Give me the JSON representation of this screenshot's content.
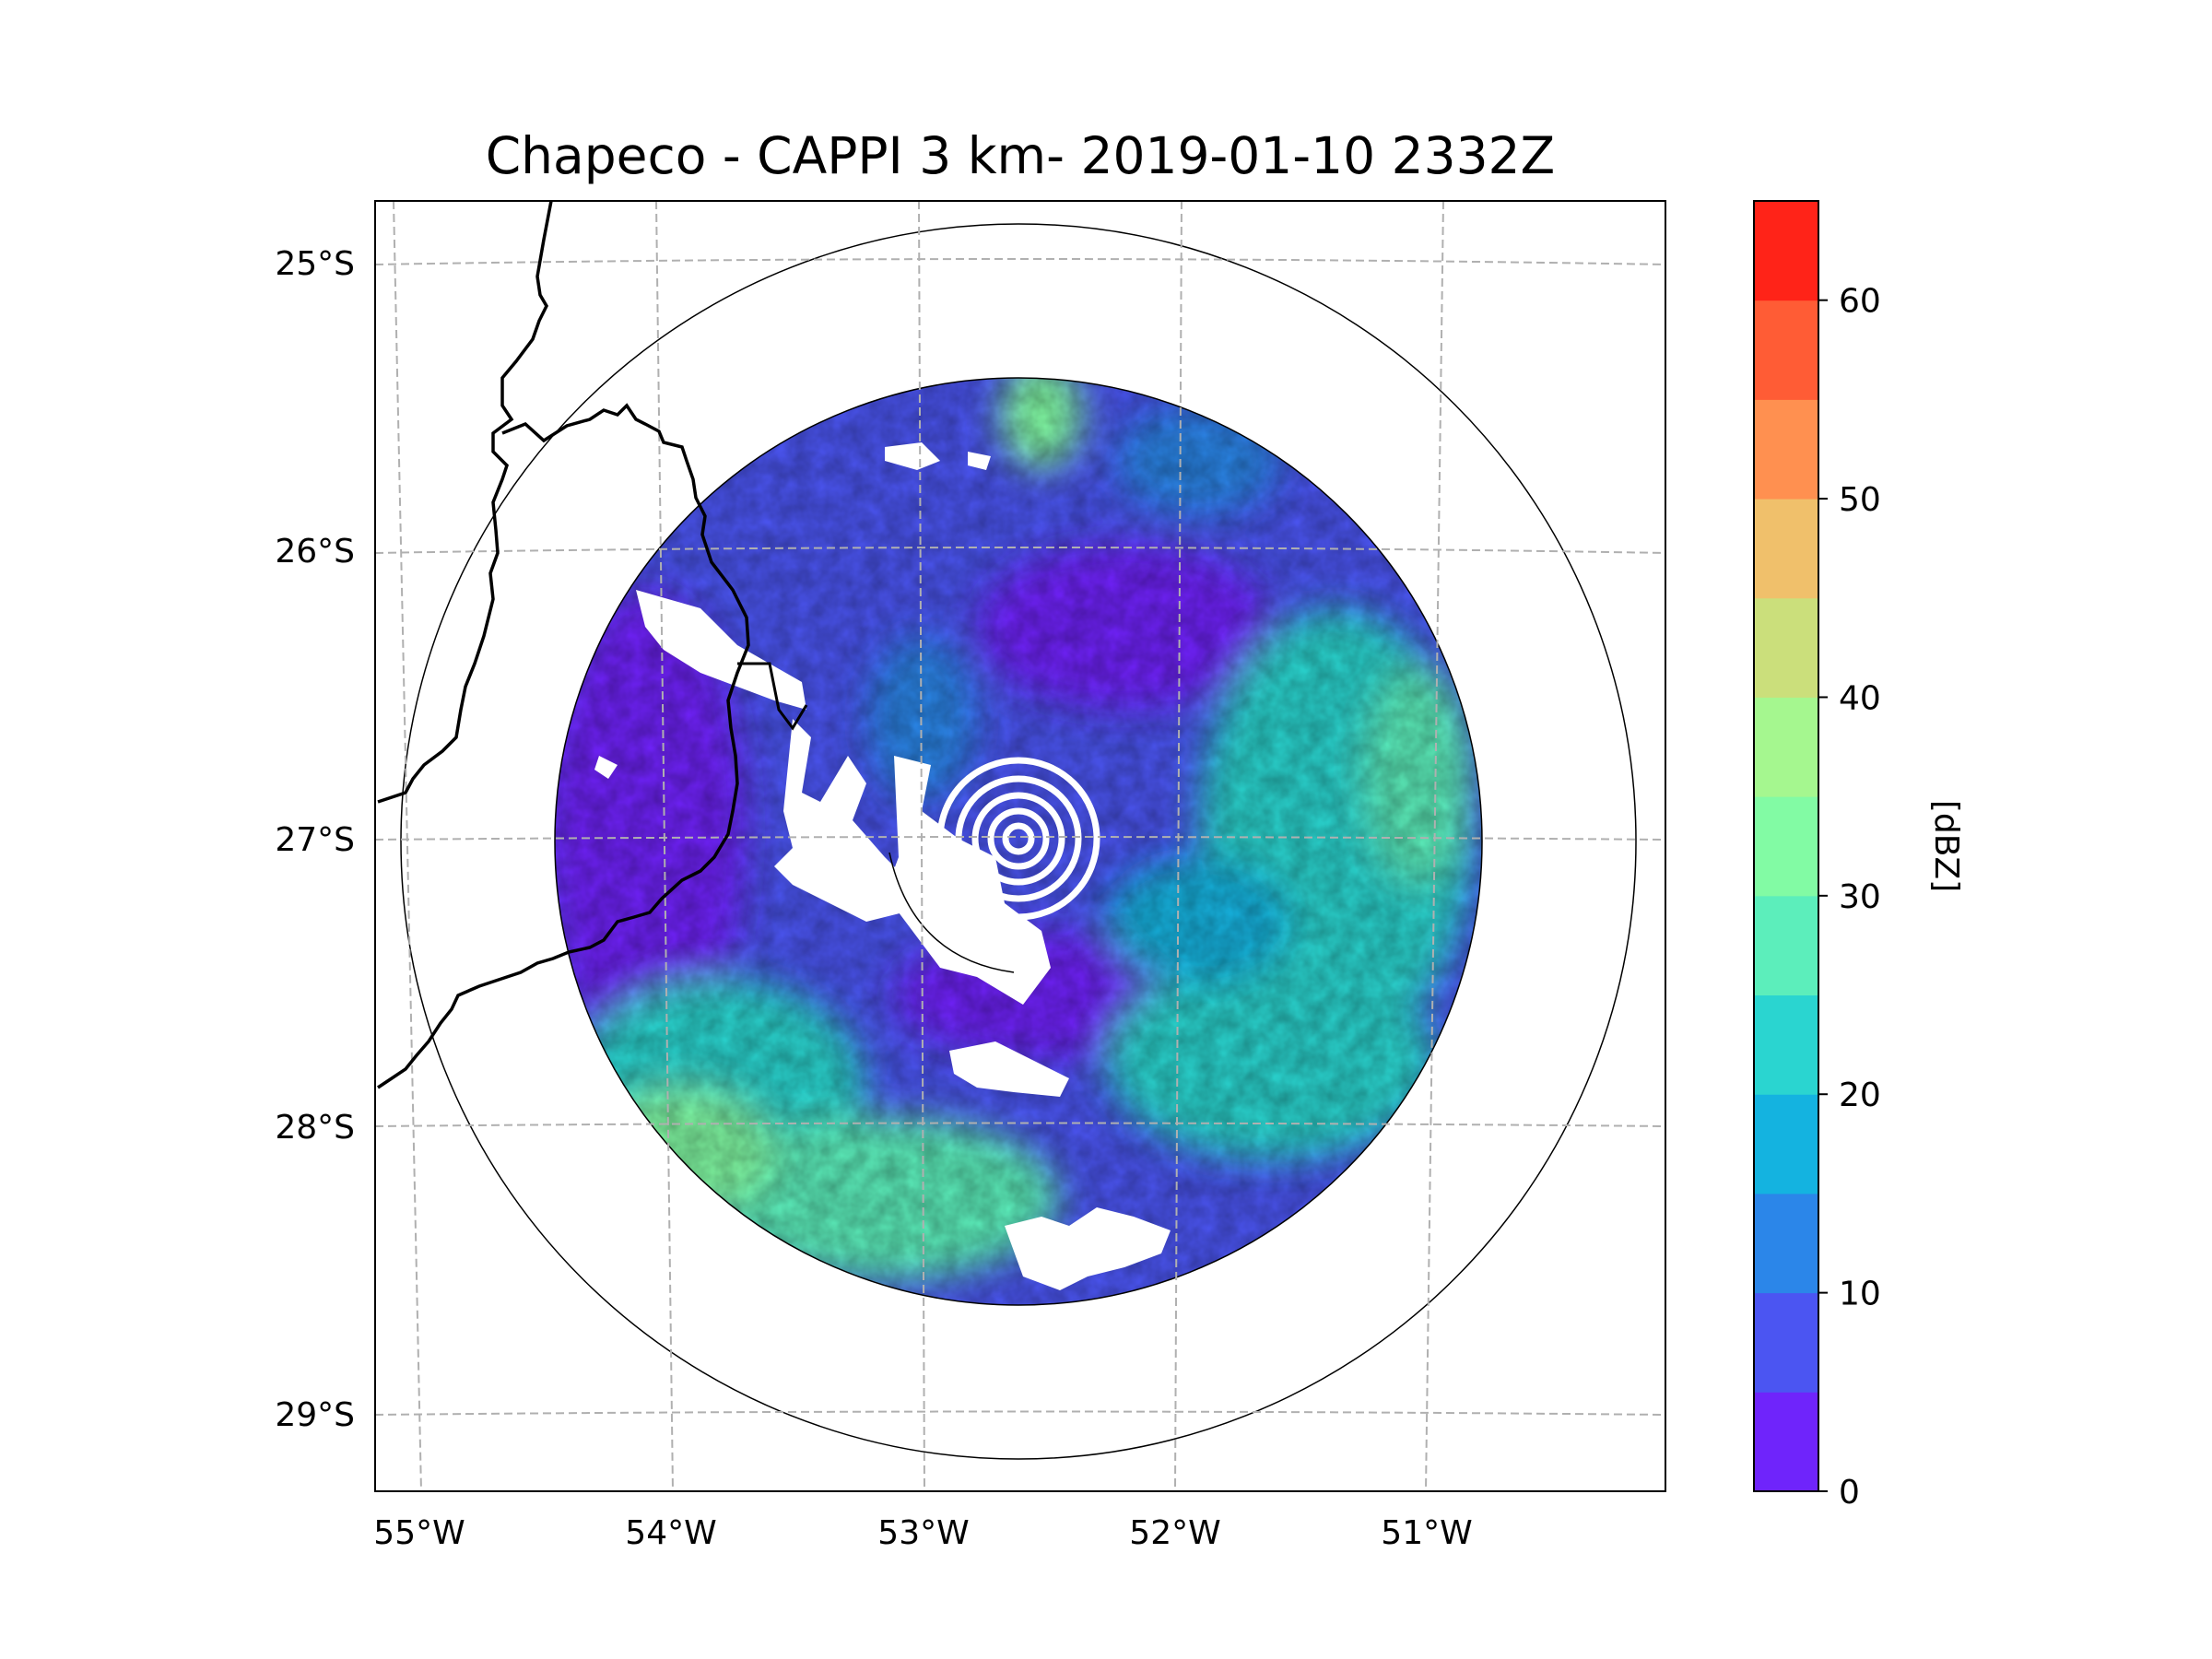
{
  "title": "Chapeco - CAPPI 3 km- 2019-01-10 2332Z",
  "map": {
    "lat_labels": [
      "25°S",
      "26°S",
      "27°S",
      "28°S",
      "29°S"
    ],
    "lon_labels": [
      "55°W",
      "54°W",
      "53°W",
      "52°W",
      "51°W"
    ],
    "gridlines": "dashed gray",
    "radar": {
      "name": "Chapeco",
      "product": "CAPPI",
      "altitude_km": 3,
      "center_lat": -27.0,
      "center_lon": -52.6
    }
  },
  "colorbar": {
    "label": "[dBZ]",
    "ticks": [
      "0",
      "10",
      "20",
      "30",
      "40",
      "50",
      "60"
    ],
    "min": 0,
    "max": 65,
    "step": 5,
    "colors": [
      "#6f24fb",
      "#4b55f2",
      "#2b86e9",
      "#14b3e0",
      "#2ad5d0",
      "#5ceebb",
      "#82fba4",
      "#a5f78f",
      "#cbdf7b",
      "#f0c06b",
      "#ff9050",
      "#ff5c35",
      "#ff2318"
    ]
  }
}
